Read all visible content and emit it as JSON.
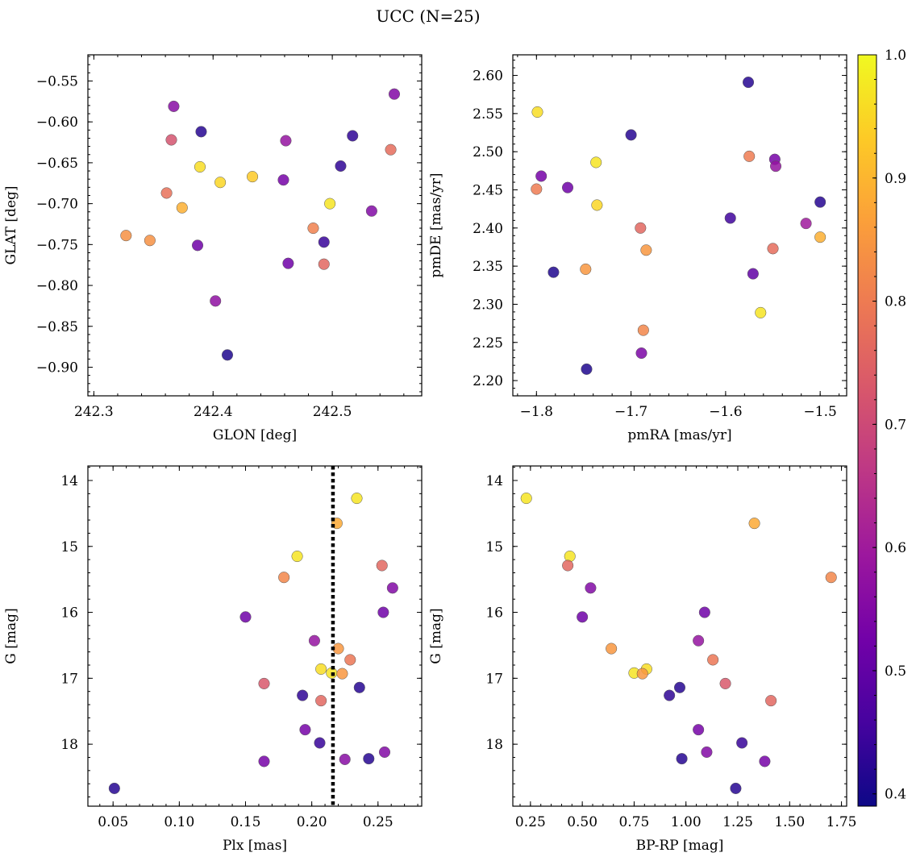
{
  "figure": {
    "title": "UCC (N=25)"
  },
  "colormap": {
    "name": "plasma",
    "stops": [
      "#0d0887",
      "#46039f",
      "#7201a8",
      "#9c179e",
      "#bd3786",
      "#d8576b",
      "#ed7953",
      "#fb9f3a",
      "#fdca26",
      "#f0f921"
    ],
    "min": 0.39,
    "max": 1.0,
    "ticks": [
      0.4,
      0.5,
      0.6,
      0.7,
      0.8,
      0.9,
      1.0
    ],
    "tick_labels": [
      "0.4",
      "0.5",
      "0.6",
      "0.7",
      "0.8",
      "0.9",
      "1.0"
    ]
  },
  "chart_data": [
    {
      "type": "scatter",
      "id": "glon-glat",
      "xlabel": "GLON [deg]",
      "ylabel": "GLAT [deg]",
      "xlim": [
        242.295,
        242.575
      ],
      "ylim": [
        -0.935,
        -0.518
      ],
      "xticks": [
        242.3,
        242.4,
        242.5
      ],
      "xtick_labels": [
        "242.3",
        "242.4",
        "242.5"
      ],
      "yticks": [
        -0.55,
        -0.6,
        -0.65,
        -0.7,
        -0.75,
        -0.8,
        -0.85,
        -0.9
      ],
      "ytick_labels": [
        "−0.55",
        "−0.60",
        "−0.65",
        "−0.70",
        "−0.75",
        "−0.80",
        "−0.85",
        "−0.90"
      ],
      "points": [
        {
          "x": 242.367,
          "y": -0.581,
          "c": 0.56
        },
        {
          "x": 242.365,
          "y": -0.622,
          "c": 0.72
        },
        {
          "x": 242.39,
          "y": -0.612,
          "c": 0.42
        },
        {
          "x": 242.389,
          "y": -0.655,
          "c": 0.96
        },
        {
          "x": 242.406,
          "y": -0.674,
          "c": 0.95
        },
        {
          "x": 242.433,
          "y": -0.667,
          "c": 0.93
        },
        {
          "x": 242.361,
          "y": -0.687,
          "c": 0.78
        },
        {
          "x": 242.374,
          "y": -0.705,
          "c": 0.89
        },
        {
          "x": 242.327,
          "y": -0.739,
          "c": 0.84
        },
        {
          "x": 242.347,
          "y": -0.745,
          "c": 0.84
        },
        {
          "x": 242.387,
          "y": -0.751,
          "c": 0.52
        },
        {
          "x": 242.402,
          "y": -0.819,
          "c": 0.57
        },
        {
          "x": 242.412,
          "y": -0.885,
          "c": 0.41
        },
        {
          "x": 242.461,
          "y": -0.623,
          "c": 0.58
        },
        {
          "x": 242.459,
          "y": -0.671,
          "c": 0.53
        },
        {
          "x": 242.463,
          "y": -0.773,
          "c": 0.52
        },
        {
          "x": 242.484,
          "y": -0.73,
          "c": 0.81
        },
        {
          "x": 242.493,
          "y": -0.747,
          "c": 0.44
        },
        {
          "x": 242.493,
          "y": -0.774,
          "c": 0.76
        },
        {
          "x": 242.507,
          "y": -0.654,
          "c": 0.43
        },
        {
          "x": 242.498,
          "y": -0.7,
          "c": 0.97
        },
        {
          "x": 242.517,
          "y": -0.617,
          "c": 0.43
        },
        {
          "x": 242.533,
          "y": -0.709,
          "c": 0.55
        },
        {
          "x": 242.549,
          "y": -0.634,
          "c": 0.77
        },
        {
          "x": 242.552,
          "y": -0.566,
          "c": 0.55
        }
      ]
    },
    {
      "type": "scatter",
      "id": "pmra-pmde",
      "xlabel": "pmRA [mas/yr]",
      "ylabel": "pmDE [mas/yr]",
      "xlim": [
        -1.825,
        -1.472
      ],
      "ylim": [
        2.18,
        2.627
      ],
      "xticks": [
        -1.8,
        -1.7,
        -1.6,
        -1.5
      ],
      "xtick_labels": [
        "−1.8",
        "−1.7",
        "−1.6",
        "−1.5"
      ],
      "yticks": [
        2.2,
        2.25,
        2.3,
        2.35,
        2.4,
        2.45,
        2.5,
        2.55,
        2.6
      ],
      "ytick_labels": [
        "2.20",
        "2.25",
        "2.30",
        "2.35",
        "2.40",
        "2.45",
        "2.50",
        "2.55",
        "2.60"
      ],
      "points": [
        {
          "x": -1.799,
          "y": 2.552,
          "c": 0.96
        },
        {
          "x": -1.795,
          "y": 2.468,
          "c": 0.53
        },
        {
          "x": -1.8,
          "y": 2.451,
          "c": 0.8
        },
        {
          "x": -1.767,
          "y": 2.453,
          "c": 0.52
        },
        {
          "x": -1.782,
          "y": 2.342,
          "c": 0.41
        },
        {
          "x": -1.737,
          "y": 2.486,
          "c": 0.97
        },
        {
          "x": -1.736,
          "y": 2.43,
          "c": 0.95
        },
        {
          "x": -1.748,
          "y": 2.346,
          "c": 0.85
        },
        {
          "x": -1.747,
          "y": 2.215,
          "c": 0.41
        },
        {
          "x": -1.7,
          "y": 2.522,
          "c": 0.42
        },
        {
          "x": -1.69,
          "y": 2.4,
          "c": 0.76
        },
        {
          "x": -1.684,
          "y": 2.371,
          "c": 0.85
        },
        {
          "x": -1.687,
          "y": 2.266,
          "c": 0.82
        },
        {
          "x": -1.689,
          "y": 2.236,
          "c": 0.54
        },
        {
          "x": -1.576,
          "y": 2.591,
          "c": 0.42
        },
        {
          "x": -1.575,
          "y": 2.494,
          "c": 0.8
        },
        {
          "x": -1.548,
          "y": 2.49,
          "c": 0.53
        },
        {
          "x": -1.547,
          "y": 2.481,
          "c": 0.58
        },
        {
          "x": -1.595,
          "y": 2.413,
          "c": 0.45
        },
        {
          "x": -1.55,
          "y": 2.373,
          "c": 0.77
        },
        {
          "x": -1.571,
          "y": 2.34,
          "c": 0.5
        },
        {
          "x": -1.563,
          "y": 2.289,
          "c": 0.97
        },
        {
          "x": -1.515,
          "y": 2.406,
          "c": 0.6
        },
        {
          "x": -1.5,
          "y": 2.434,
          "c": 0.42
        },
        {
          "x": -1.5,
          "y": 2.388,
          "c": 0.89
        }
      ]
    },
    {
      "type": "scatter",
      "id": "plx-g",
      "xlabel": "Plx [mas]",
      "ylabel": "G [mag]",
      "xlim": [
        0.031,
        0.283
      ],
      "ylim": [
        18.94,
        13.78
      ],
      "y_inverted": true,
      "vline": 0.216,
      "xticks": [
        0.05,
        0.1,
        0.15,
        0.2,
        0.25
      ],
      "xtick_labels": [
        "0.05",
        "0.10",
        "0.15",
        "0.20",
        "0.25"
      ],
      "yticks": [
        14,
        15,
        16,
        17,
        18
      ],
      "ytick_labels": [
        "14",
        "15",
        "16",
        "17",
        "18"
      ],
      "points": [
        {
          "x": 0.234,
          "y": 14.27,
          "c": 0.97
        },
        {
          "x": 0.219,
          "y": 14.65,
          "c": 0.88
        },
        {
          "x": 0.189,
          "y": 15.15,
          "c": 0.97
        },
        {
          "x": 0.179,
          "y": 15.47,
          "c": 0.82
        },
        {
          "x": 0.253,
          "y": 15.29,
          "c": 0.76
        },
        {
          "x": 0.261,
          "y": 15.63,
          "c": 0.55
        },
        {
          "x": 0.15,
          "y": 16.07,
          "c": 0.52
        },
        {
          "x": 0.254,
          "y": 16.0,
          "c": 0.52
        },
        {
          "x": 0.202,
          "y": 16.43,
          "c": 0.58
        },
        {
          "x": 0.22,
          "y": 16.55,
          "c": 0.85
        },
        {
          "x": 0.229,
          "y": 16.72,
          "c": 0.79
        },
        {
          "x": 0.207,
          "y": 16.86,
          "c": 0.96
        },
        {
          "x": 0.215,
          "y": 16.92,
          "c": 0.97
        },
        {
          "x": 0.223,
          "y": 16.93,
          "c": 0.85
        },
        {
          "x": 0.164,
          "y": 17.08,
          "c": 0.73
        },
        {
          "x": 0.236,
          "y": 17.14,
          "c": 0.42
        },
        {
          "x": 0.193,
          "y": 17.26,
          "c": 0.43
        },
        {
          "x": 0.207,
          "y": 17.34,
          "c": 0.76
        },
        {
          "x": 0.195,
          "y": 17.78,
          "c": 0.53
        },
        {
          "x": 0.206,
          "y": 17.98,
          "c": 0.44
        },
        {
          "x": 0.255,
          "y": 18.12,
          "c": 0.55
        },
        {
          "x": 0.164,
          "y": 18.26,
          "c": 0.53
        },
        {
          "x": 0.225,
          "y": 18.23,
          "c": 0.56
        },
        {
          "x": 0.243,
          "y": 18.22,
          "c": 0.42
        },
        {
          "x": 0.051,
          "y": 18.67,
          "c": 0.42
        }
      ]
    },
    {
      "type": "scatter",
      "id": "bprp-g",
      "xlabel": "BP-RP [mag]",
      "ylabel": "G [mag]",
      "xlim": [
        0.165,
        1.775
      ],
      "ylim": [
        18.94,
        13.78
      ],
      "y_inverted": true,
      "xticks": [
        0.25,
        0.5,
        0.75,
        1.0,
        1.25,
        1.5,
        1.75
      ],
      "xtick_labels": [
        "0.25",
        "0.50",
        "0.75",
        "1.00",
        "1.25",
        "1.50",
        "1.75"
      ],
      "yticks": [
        14,
        15,
        16,
        17,
        18
      ],
      "ytick_labels": [
        "14",
        "15",
        "16",
        "17",
        "18"
      ],
      "points": [
        {
          "x": 0.23,
          "y": 14.27,
          "c": 0.97
        },
        {
          "x": 1.33,
          "y": 14.65,
          "c": 0.88
        },
        {
          "x": 0.44,
          "y": 15.15,
          "c": 0.97
        },
        {
          "x": 0.43,
          "y": 15.29,
          "c": 0.76
        },
        {
          "x": 1.7,
          "y": 15.47,
          "c": 0.82
        },
        {
          "x": 0.54,
          "y": 15.63,
          "c": 0.55
        },
        {
          "x": 0.5,
          "y": 16.07,
          "c": 0.52
        },
        {
          "x": 1.09,
          "y": 16.0,
          "c": 0.52
        },
        {
          "x": 1.06,
          "y": 16.43,
          "c": 0.58
        },
        {
          "x": 0.64,
          "y": 16.55,
          "c": 0.85
        },
        {
          "x": 1.13,
          "y": 16.72,
          "c": 0.79
        },
        {
          "x": 0.81,
          "y": 16.86,
          "c": 0.96
        },
        {
          "x": 0.75,
          "y": 16.92,
          "c": 0.97
        },
        {
          "x": 0.79,
          "y": 16.93,
          "c": 0.85
        },
        {
          "x": 1.19,
          "y": 17.08,
          "c": 0.73
        },
        {
          "x": 0.97,
          "y": 17.14,
          "c": 0.42
        },
        {
          "x": 0.92,
          "y": 17.26,
          "c": 0.43
        },
        {
          "x": 1.41,
          "y": 17.34,
          "c": 0.76
        },
        {
          "x": 1.06,
          "y": 17.78,
          "c": 0.53
        },
        {
          "x": 1.27,
          "y": 17.98,
          "c": 0.44
        },
        {
          "x": 1.1,
          "y": 18.12,
          "c": 0.55
        },
        {
          "x": 1.38,
          "y": 18.26,
          "c": 0.53
        },
        {
          "x": 0.98,
          "y": 18.22,
          "c": 0.42
        },
        {
          "x": 1.24,
          "y": 18.67,
          "c": 0.42
        }
      ]
    }
  ]
}
